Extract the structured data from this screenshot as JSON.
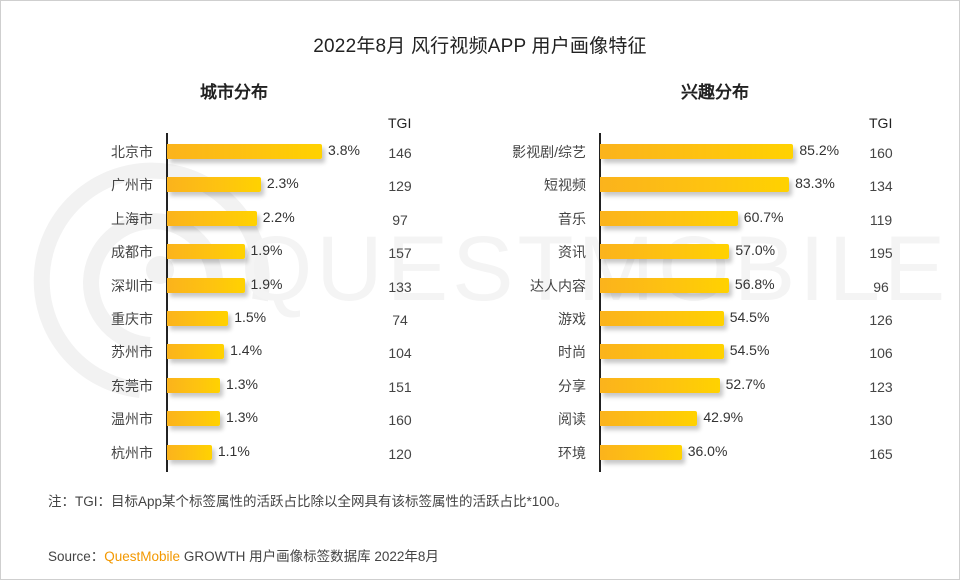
{
  "title": "2022年8月 风行视频APP 用户画像特征",
  "tgi_header": "TGI",
  "watermark": "QUESTMOBILE",
  "colors": {
    "bar_start": "#fbb31c",
    "bar_end": "#ffd200",
    "brand_orange": "#f39800",
    "axis": "#222222"
  },
  "chart_data": [
    {
      "type": "bar",
      "orientation": "horizontal",
      "title": "城市分布",
      "value_unit": "%",
      "categories": [
        "北京市",
        "广州市",
        "上海市",
        "成都市",
        "深圳市",
        "重庆市",
        "苏州市",
        "东莞市",
        "温州市",
        "杭州市"
      ],
      "values": [
        3.8,
        2.3,
        2.2,
        1.9,
        1.9,
        1.5,
        1.4,
        1.3,
        1.3,
        1.1
      ],
      "labels": [
        "3.8%",
        "2.3%",
        "2.2%",
        "1.9%",
        "1.9%",
        "1.5%",
        "1.4%",
        "1.3%",
        "1.3%",
        "1.1%"
      ],
      "tgi_header": "TGI",
      "tgi": [
        146,
        129,
        97,
        157,
        133,
        74,
        104,
        151,
        160,
        120
      ],
      "xlim": [
        0,
        4.2
      ],
      "grid": false,
      "legend": "none"
    },
    {
      "type": "bar",
      "orientation": "horizontal",
      "title": "兴趣分布",
      "value_unit": "%",
      "categories": [
        "影视剧/综艺",
        "短视频",
        "音乐",
        "资讯",
        "达人内容",
        "游戏",
        "时尚",
        "分享",
        "阅读",
        "环境"
      ],
      "values": [
        85.2,
        83.3,
        60.7,
        57.0,
        56.8,
        54.5,
        54.5,
        52.7,
        42.9,
        36.0
      ],
      "labels": [
        "85.2%",
        "83.3%",
        "60.7%",
        "57.0%",
        "56.8%",
        "54.5%",
        "54.5%",
        "52.7%",
        "42.9%",
        "36.0%"
      ],
      "tgi_header": "TGI",
      "tgi": [
        160,
        134,
        119,
        195,
        96,
        126,
        106,
        123,
        130,
        165
      ],
      "xlim": [
        0,
        100
      ],
      "grid": false,
      "legend": "none"
    }
  ],
  "footer": {
    "note": "注：TGI：目标App某个标签属性的活跃占比除以全网具有该标签属性的活跃占比*100。",
    "source_prefix": "Source：",
    "source_brand": "QuestMobile",
    "source_rest": " GROWTH 用户画像标签数据库 2022年8月"
  }
}
